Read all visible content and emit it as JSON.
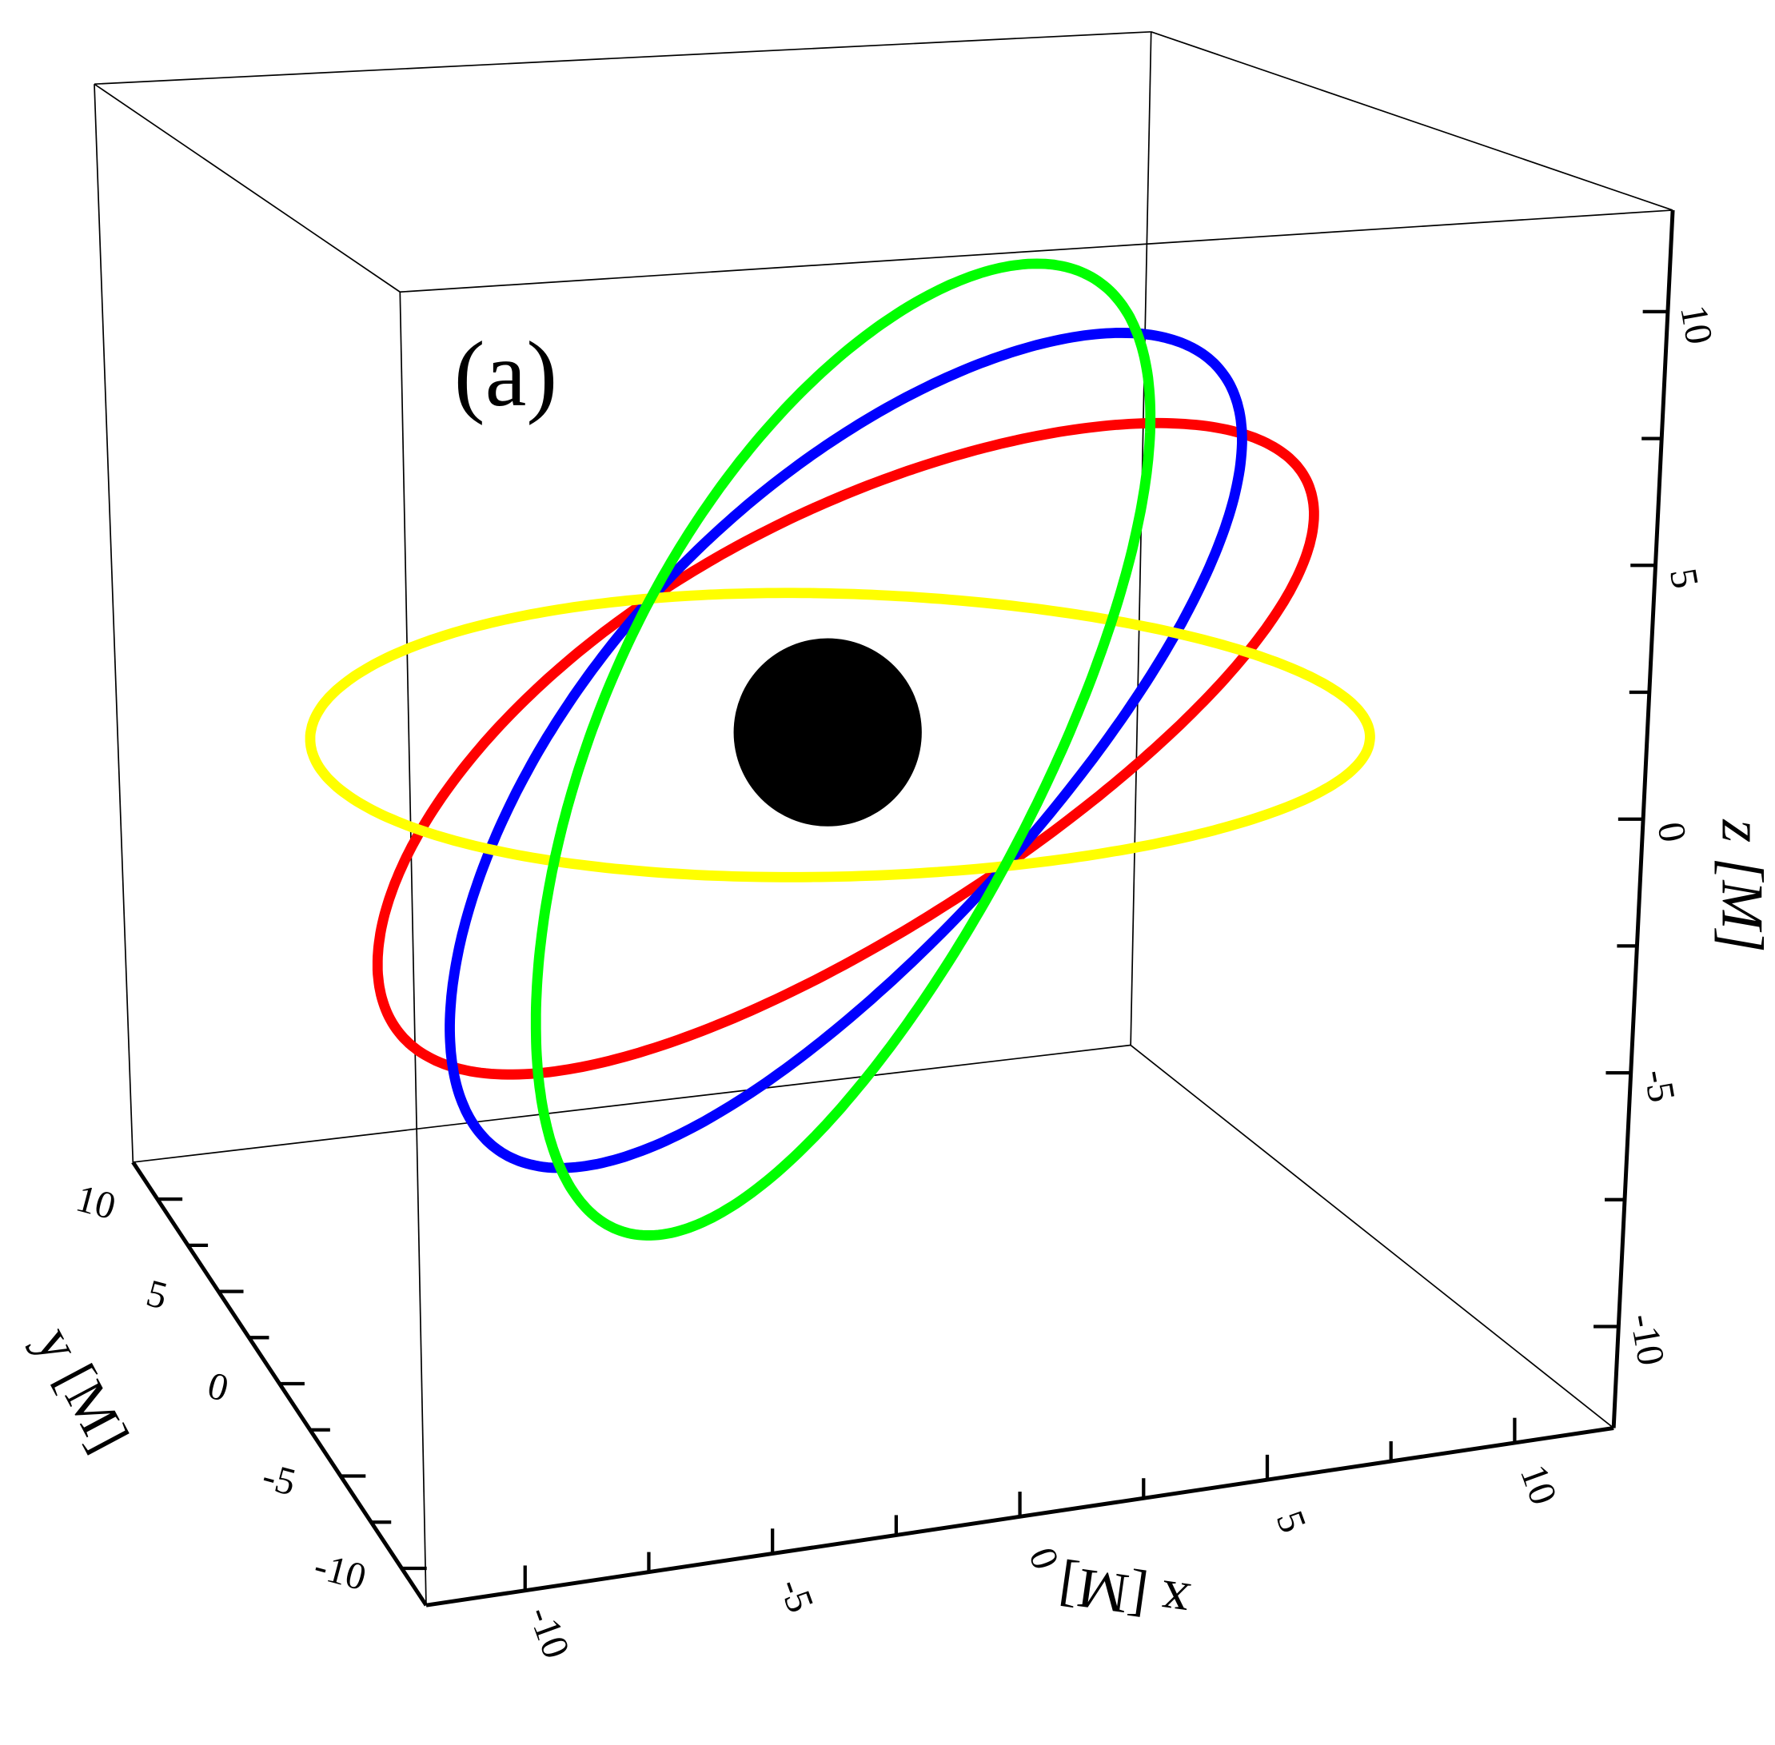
{
  "chart_data": {
    "type": "orbit3d",
    "panel_label": "(a)",
    "xlabel": "x [M]",
    "ylabel": "y [M]",
    "zlabel": "z [M]",
    "xlim": [
      -12,
      12
    ],
    "ylim": [
      -12,
      12
    ],
    "zlim": [
      -12,
      12
    ],
    "xticks": [
      -10,
      -5,
      0,
      5,
      10
    ],
    "yticks": [
      -10,
      -5,
      0,
      5,
      10
    ],
    "zticks": [
      -10,
      -5,
      0,
      5,
      10
    ],
    "xminorticks": [
      -7.5,
      -2.5,
      2.5,
      7.5
    ],
    "yminorticks": [
      -7.5,
      -2.5,
      2.5,
      7.5
    ],
    "zminorticks": [
      -7.5,
      -2.5,
      2.5,
      7.5
    ],
    "orbit_radius": 10.6,
    "horizon_radius": 2,
    "horizon_color": "#000000",
    "series": [
      {
        "color": "#ff0000",
        "inclination": 30
      },
      {
        "color": "#0000ff",
        "inclination": 45
      },
      {
        "color": "#ffff00",
        "inclination": 0
      },
      {
        "color": "#00ff00",
        "inclination": 60
      }
    ]
  }
}
